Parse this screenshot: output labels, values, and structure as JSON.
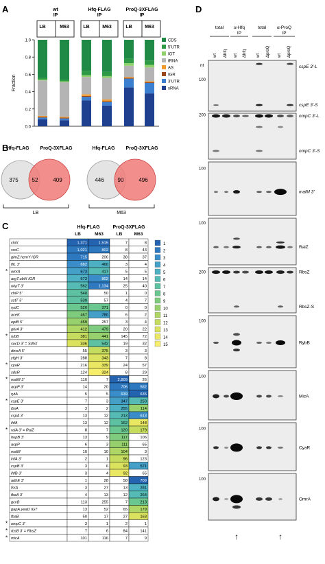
{
  "panels": {
    "A": "A",
    "B": "B",
    "C": "C",
    "D": "D"
  },
  "panel_a": {
    "ylabel": "Fraction",
    "ticks": [
      "0.0",
      "0.2",
      "0.4",
      "0.6",
      "0.8",
      "1.0"
    ],
    "groups": [
      {
        "line1": "wt",
        "line2": "IP"
      },
      {
        "line1": "Hfq-FLAG",
        "line2": "IP"
      },
      {
        "line1": "ProQ-3XFLAG",
        "line2": "IP"
      }
    ],
    "lanes": [
      "LB",
      "M63",
      "LB",
      "M63",
      "LB",
      "M63"
    ]
  },
  "chart_data": {
    "type": "bar",
    "stacked": true,
    "ylabel": "Fraction",
    "ylim": [
      0,
      1.0
    ],
    "categories": [
      "wt IP LB",
      "wt IP M63",
      "Hfq-FLAG IP LB",
      "Hfq-FLAG IP M63",
      "ProQ-3XFLAG IP LB",
      "ProQ-3XFLAG IP M63"
    ],
    "series": [
      {
        "name": "sRNA",
        "color": "#1f3f8f",
        "values": [
          0.08,
          0.07,
          0.3,
          0.24,
          0.45,
          0.38
        ]
      },
      {
        "name": "3'UTR",
        "color": "#3a7fd0",
        "values": [
          0.02,
          0.02,
          0.04,
          0.04,
          0.1,
          0.12
        ]
      },
      {
        "name": "IGR",
        "color": "#9a4a1a",
        "values": [
          0.01,
          0.01,
          0.01,
          0.01,
          0.01,
          0.01
        ]
      },
      {
        "name": "AS",
        "color": "#f39a2e",
        "values": [
          0.01,
          0.01,
          0.02,
          0.02,
          0.01,
          0.01
        ]
      },
      {
        "name": "tRNA",
        "color": "#b4b4b4",
        "values": [
          0.41,
          0.4,
          0.2,
          0.25,
          0.13,
          0.16
        ]
      },
      {
        "name": "IGT",
        "color": "#8ed16a",
        "values": [
          0.01,
          0.01,
          0.02,
          0.02,
          0.03,
          0.03
        ]
      },
      {
        "name": "5'UTR",
        "color": "#2e9a46",
        "values": [
          0.02,
          0.02,
          0.05,
          0.05,
          0.05,
          0.05
        ]
      },
      {
        "name": "CDS",
        "color": "#1e8a45",
        "values": [
          0.44,
          0.46,
          0.36,
          0.37,
          0.22,
          0.24
        ]
      }
    ],
    "legend": [
      "CDS",
      "5'UTR",
      "IGT",
      "tRNA",
      "AS",
      "IGR",
      "3'UTR",
      "sRNA"
    ],
    "legend_position": "right"
  },
  "panel_b": {
    "venns": [
      {
        "left_name": "Hfq-FLAG",
        "right_name": "ProQ-3XFLAG",
        "left_only": "375",
        "both": "52",
        "right_only": "409",
        "condition": "LB"
      },
      {
        "left_name": "Hfq-FLAG",
        "right_name": "ProQ-3XFLAG",
        "left_only": "446",
        "both": "90",
        "right_only": "496",
        "condition": "M63"
      }
    ]
  },
  "panel_c": {
    "group_headers": [
      "Hfq-FLAG",
      "ProQ-3XFLAG"
    ],
    "col_headers": [
      "LB",
      "M63",
      "LB",
      "M63"
    ],
    "scale": [
      "1",
      "2",
      "3",
      "4",
      "5",
      "6",
      "7",
      "8",
      "9",
      "10",
      "11",
      "12",
      "13",
      "14",
      "15"
    ],
    "scale_colors": [
      "#2463b0",
      "#2e78c0",
      "#3a8dc8",
      "#45a0c8",
      "#4db1c3",
      "#55bbb4",
      "#5ec2a2",
      "#6ac790",
      "#7fcc7e",
      "#96d16e",
      "#aed765",
      "#c6dc5e",
      "#dae25e",
      "#eae863",
      "#f7ef6b"
    ],
    "rows": [
      {
        "star": "",
        "name": "chiX",
        "v": [
          "1,371",
          "1,515",
          "7",
          "8"
        ],
        "r": [
          1,
          1,
          0,
          0
        ]
      },
      {
        "star": "",
        "name": "sroC",
        "v": [
          "1,021",
          "802",
          "8",
          "43"
        ],
        "r": [
          2,
          2,
          0,
          0
        ]
      },
      {
        "star": "",
        "name": "glmZ.hemY IGR",
        "v": [
          "715",
          "206",
          "38",
          "37"
        ],
        "r": [
          2,
          0,
          0,
          0
        ]
      },
      {
        "star": "",
        "name": "fliL 3'",
        "v": [
          "682",
          "460",
          "3",
          "4"
        ],
        "r": [
          3,
          5,
          0,
          0
        ]
      },
      {
        "star": "*",
        "name": "omrA",
        "v": [
          "673",
          "417",
          "5",
          "5"
        ],
        "r": [
          4,
          6,
          0,
          0
        ]
      },
      {
        "star": "",
        "name": "argT.ubiX IGR",
        "v": [
          "673",
          "802",
          "14",
          "14"
        ],
        "r": [
          5,
          3,
          0,
          0
        ]
      },
      {
        "star": "",
        "name": "uhpT 3'",
        "v": [
          "562",
          "1,134",
          "25",
          "40"
        ],
        "r": [
          6,
          2,
          0,
          0
        ]
      },
      {
        "star": "",
        "name": "chiP 5'",
        "v": [
          "540",
          "50",
          "1",
          "0"
        ],
        "r": [
          7,
          0,
          0,
          0
        ]
      },
      {
        "star": "",
        "name": "sstT 5'",
        "v": [
          "539",
          "57",
          "4",
          "7"
        ],
        "r": [
          7,
          0,
          0,
          0
        ]
      },
      {
        "star": "",
        "name": "rydC",
        "v": [
          "520",
          "371",
          "0",
          "0"
        ],
        "r": [
          8,
          8,
          0,
          0
        ]
      },
      {
        "star": "",
        "name": "aceK",
        "v": [
          "467",
          "780",
          "6",
          "2"
        ],
        "r": [
          9,
          4,
          0,
          0
        ]
      },
      {
        "star": "",
        "name": "eptB 5'",
        "v": [
          "459",
          "257",
          "3",
          "4"
        ],
        "r": [
          10,
          0,
          0,
          0
        ]
      },
      {
        "star": "",
        "name": "ghrA 3'",
        "v": [
          "412",
          "479",
          "20",
          "22"
        ],
        "r": [
          11,
          9,
          0,
          0
        ]
      },
      {
        "star": "*",
        "name": "rybB",
        "v": [
          "381",
          "441",
          "145",
          "72"
        ],
        "r": [
          12,
          10,
          0,
          0
        ]
      },
      {
        "star": "",
        "name": "sucD 3' = SdhX",
        "v": [
          "336",
          "542",
          "19",
          "32"
        ],
        "r": [
          13,
          7,
          0,
          0
        ]
      },
      {
        "star": "",
        "name": "dmsA 5'",
        "v": [
          "55",
          "375",
          "3",
          "3"
        ],
        "r": [
          0,
          12,
          0,
          0
        ]
      },
      {
        "star": "",
        "name": "yfgH 3'",
        "v": [
          "288",
          "343",
          "7",
          "8"
        ],
        "r": [
          0,
          13,
          0,
          0
        ]
      },
      {
        "star": "*",
        "name": "cyaR",
        "v": [
          "216",
          "339",
          "24",
          "57"
        ],
        "r": [
          0,
          14,
          0,
          0
        ]
      },
      {
        "star": "",
        "name": "sdsR",
        "v": [
          "124",
          "324",
          "8",
          "29"
        ],
        "r": [
          0,
          15,
          0,
          0
        ]
      },
      {
        "star": "*",
        "name": "malM 3'",
        "v": [
          "110",
          "7",
          "2,809",
          "26"
        ],
        "r": [
          0,
          0,
          1,
          0
        ]
      },
      {
        "star": "",
        "name": "acpP 3'",
        "v": [
          "14",
          "20",
          "706",
          "582"
        ],
        "r": [
          0,
          0,
          2,
          2
        ]
      },
      {
        "star": "",
        "name": "rytA",
        "v": [
          "5",
          "5",
          "639",
          "635"
        ],
        "r": [
          0,
          0,
          3,
          1
        ]
      },
      {
        "star": "*",
        "name": "cspE 3'",
        "v": [
          "7",
          "3",
          "347",
          "250"
        ],
        "r": [
          0,
          0,
          4,
          6
        ]
      },
      {
        "star": "",
        "name": "ibsA",
        "v": [
          "3",
          "2",
          "255",
          "114"
        ],
        "r": [
          0,
          0,
          5,
          10
        ]
      },
      {
        "star": "",
        "name": "cspA 3'",
        "v": [
          "13",
          "12",
          "213",
          "613"
        ],
        "r": [
          0,
          0,
          6,
          3
        ]
      },
      {
        "star": "",
        "name": "ihfA",
        "v": [
          "13",
          "12",
          "162",
          "148"
        ],
        "r": [
          0,
          0,
          7,
          14
        ]
      },
      {
        "star": "*",
        "name": "raiA 3' = RaiZ",
        "v": [
          "8",
          "7",
          "120",
          "179"
        ],
        "r": [
          0,
          0,
          8,
          12
        ]
      },
      {
        "star": "",
        "name": "hupB 3'",
        "v": [
          "13",
          "9",
          "117",
          "106"
        ],
        "r": [
          0,
          0,
          9,
          0
        ]
      },
      {
        "star": "",
        "name": "acpP",
        "v": [
          "6",
          "3",
          "111",
          "65"
        ],
        "r": [
          0,
          0,
          10,
          0
        ]
      },
      {
        "star": "",
        "name": "malM",
        "v": [
          "10",
          "10",
          "104",
          "3"
        ],
        "r": [
          0,
          0,
          11,
          0
        ]
      },
      {
        "star": "",
        "name": "infA 3'",
        "v": [
          "2",
          "1",
          "96",
          "123"
        ],
        "r": [
          0,
          0,
          12,
          0
        ]
      },
      {
        "star": "",
        "name": "cspB 3'",
        "v": [
          "3",
          "6",
          "93",
          "571"
        ],
        "r": [
          0,
          0,
          13,
          4
        ]
      },
      {
        "star": "",
        "name": "ihfB 3'",
        "v": [
          "3",
          "4",
          "92",
          "65"
        ],
        "r": [
          0,
          0,
          14,
          0
        ]
      },
      {
        "star": "",
        "name": "adhE 3'",
        "v": [
          "1",
          "28",
          "58",
          "709"
        ],
        "r": [
          0,
          0,
          0,
          1
        ]
      },
      {
        "star": "",
        "name": "fnrA",
        "v": [
          "3",
          "27",
          "13",
          "281"
        ],
        "r": [
          0,
          0,
          0,
          5
        ]
      },
      {
        "star": "",
        "name": "fbaA 3'",
        "v": [
          "4",
          "13",
          "12",
          "264"
        ],
        "r": [
          0,
          0,
          0,
          6
        ]
      },
      {
        "star": "",
        "name": "gcvB",
        "v": [
          "113",
          "255",
          "7",
          "213"
        ],
        "r": [
          0,
          0,
          0,
          8
        ]
      },
      {
        "star": "",
        "name": "gapA.yeaD IGT",
        "v": [
          "13",
          "52",
          "65",
          "179"
        ],
        "r": [
          0,
          0,
          0,
          11
        ]
      },
      {
        "star": "",
        "name": "fbaB",
        "v": [
          "50",
          "17",
          "27",
          "163"
        ],
        "r": [
          0,
          0,
          0,
          13
        ]
      },
      {
        "star": "*",
        "name": "ompC 3'",
        "v": [
          "3",
          "1",
          "2",
          "1"
        ],
        "r": [
          0,
          0,
          0,
          0
        ]
      },
      {
        "star": "*",
        "name": "rbsB 3' = RbsZ",
        "v": [
          "7",
          "6",
          "84",
          "141"
        ],
        "r": [
          0,
          0,
          0,
          0
        ]
      },
      {
        "star": "*",
        "name": "micA",
        "v": [
          "101",
          "116",
          "7",
          "9"
        ],
        "r": [
          0,
          0,
          0,
          0
        ]
      }
    ]
  },
  "panel_d": {
    "top_groups": [
      {
        "label": "total",
        "sub": ""
      },
      {
        "label": "α-Hfq",
        "sub": "IP"
      },
      {
        "label": "total",
        "sub": ""
      },
      {
        "label": "α-ProQ",
        "sub": "IP"
      }
    ],
    "lane_labels": [
      "wt",
      "Δhfq",
      "wt",
      "Δhfq",
      "wt",
      "ΔproQ",
      "wt",
      "ΔproQ"
    ],
    "nt_label": "nt",
    "blots": [
      {
        "markers": [
          {
            "t": "100",
            "y": 0.38
          }
        ],
        "labels": [
          {
            "t": "cspE 3'-L",
            "y": 0.12
          },
          {
            "t": "cspE 3'-S",
            "y": 0.88
          }
        ]
      },
      {
        "markers": [
          {
            "t": "200",
            "y": 0.04
          }
        ],
        "labels": [
          {
            "t": "ompC 3'-L",
            "y": 0.06
          },
          {
            "t": "ompC 3'-S",
            "y": 0.82
          }
        ]
      },
      {
        "markers": [
          {
            "t": "100",
            "y": 0.12
          }
        ],
        "labels": [
          {
            "t": "malM 3'",
            "y": 0.56
          }
        ]
      },
      {
        "markers": [
          {
            "t": "100",
            "y": 0.1
          }
        ],
        "labels": [
          {
            "t": "RaiZ",
            "y": 0.62
          }
        ]
      },
      {
        "markers": [
          {
            "t": "200",
            "y": 0.1
          }
        ],
        "labels": [
          {
            "t": "RbsZ",
            "y": 0.1
          },
          {
            "t": "RbsZ-S",
            "y": 0.86
          }
        ]
      },
      {
        "markers": [
          {
            "t": "100",
            "y": 0.1
          }
        ],
        "labels": [
          {
            "t": "RybB",
            "y": 0.52
          }
        ]
      },
      {
        "markers": [
          {
            "t": "100",
            "y": 0.12
          }
        ],
        "labels": [
          {
            "t": "MicA",
            "y": 0.52
          }
        ]
      },
      {
        "markers": [
          {
            "t": "100",
            "y": 0.12
          }
        ],
        "labels": [
          {
            "t": "CyaR",
            "y": 0.52
          }
        ]
      },
      {
        "markers": [
          {
            "t": "100",
            "y": 0.12
          }
        ],
        "labels": [
          {
            "t": "OmrA",
            "y": 0.55
          }
        ]
      }
    ],
    "arrow": "↑"
  }
}
